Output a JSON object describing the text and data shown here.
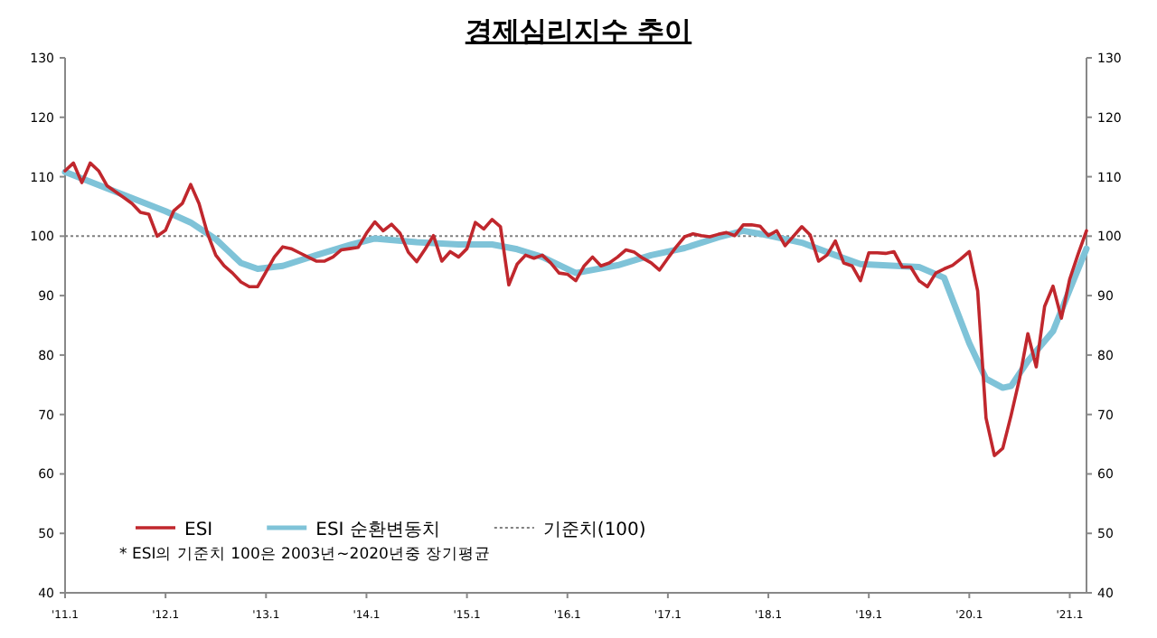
{
  "chart_data": {
    "type": "line",
    "title": "경제심리지수 추이",
    "x": [
      "2011-01",
      "2011-02",
      "2011-03",
      "2011-04",
      "2011-05",
      "2011-06",
      "2011-07",
      "2011-08",
      "2011-09",
      "2011-10",
      "2011-11",
      "2011-12",
      "2012-01",
      "2012-02",
      "2012-03",
      "2012-04",
      "2012-05",
      "2012-06",
      "2012-07",
      "2012-08",
      "2012-09",
      "2012-10",
      "2012-11",
      "2012-12",
      "2013-01",
      "2013-02",
      "2013-03",
      "2013-04",
      "2013-05",
      "2013-06",
      "2013-07",
      "2013-08",
      "2013-09",
      "2013-10",
      "2013-11",
      "2013-12",
      "2014-01",
      "2014-02",
      "2014-03",
      "2014-04",
      "2014-05",
      "2014-06",
      "2014-07",
      "2014-08",
      "2014-09",
      "2014-10",
      "2014-11",
      "2014-12",
      "2015-01",
      "2015-02",
      "2015-03",
      "2015-04",
      "2015-05",
      "2015-06",
      "2015-07",
      "2015-08",
      "2015-09",
      "2015-10",
      "2015-11",
      "2015-12",
      "2016-01",
      "2016-02",
      "2016-03",
      "2016-04",
      "2016-05",
      "2016-06",
      "2016-07",
      "2016-08",
      "2016-09",
      "2016-10",
      "2016-11",
      "2016-12",
      "2017-01",
      "2017-02",
      "2017-03",
      "2017-04",
      "2017-05",
      "2017-06",
      "2017-07",
      "2017-08",
      "2017-09",
      "2017-10",
      "2017-11",
      "2017-12",
      "2018-01",
      "2018-02",
      "2018-03",
      "2018-04",
      "2018-05",
      "2018-06",
      "2018-07",
      "2018-08",
      "2018-09",
      "2018-10",
      "2018-11",
      "2018-12",
      "2019-01",
      "2019-02",
      "2019-03",
      "2019-04",
      "2019-05",
      "2019-06",
      "2019-07",
      "2019-08",
      "2019-09",
      "2019-10",
      "2019-11",
      "2019-12",
      "2020-01",
      "2020-02",
      "2020-03",
      "2020-04",
      "2020-05",
      "2020-06",
      "2020-07",
      "2020-08",
      "2020-09",
      "2020-10",
      "2020-11",
      "2020-12",
      "2021-01",
      "2021-02",
      "2021-03"
    ],
    "series": [
      {
        "name": "ESI",
        "color": "#c0272d",
        "values": [
          111,
          112.3,
          109,
          112.3,
          111,
          108.5,
          107.5,
          106.5,
          105.5,
          104,
          103.7,
          100,
          101,
          104.3,
          105.5,
          108.7,
          105.5,
          100.5,
          96.8,
          95,
          93.8,
          92.3,
          91.5,
          91.5,
          94,
          96.5,
          98.2,
          97.9,
          97.2,
          96.5,
          95.8,
          95.8,
          96.5,
          97.7,
          97.9,
          98.1,
          100.5,
          102.4,
          100.9,
          102,
          100.5,
          97.3,
          95.7,
          97.8,
          100.1,
          95.8,
          97.4,
          96.5,
          97.9,
          102.3,
          101.2,
          102.8,
          101.6,
          91.8,
          95.3,
          96.8,
          96.3,
          96.8,
          95.5,
          93.8,
          93.6,
          92.5,
          95,
          96.5,
          95,
          95.5,
          96.5,
          97.7,
          97.3,
          96.3,
          95.5,
          94.3,
          96.3,
          98.2,
          99.9,
          100.4,
          100.1,
          99.9,
          100.3,
          100.6,
          100.1,
          101.9,
          101.9,
          101.7,
          100.1,
          100.9,
          98.4,
          100,
          101.6,
          100.2,
          95.8,
          96.8,
          99.2,
          95.5,
          95,
          92.5,
          97.2,
          97.2,
          97.1,
          97.4,
          94.8,
          94.8,
          92.5,
          91.5,
          93.8,
          94.5,
          95.1,
          96.2,
          97.4,
          90.8,
          69.4,
          63.1,
          64.3,
          69.9,
          76,
          83.6,
          78,
          88.2,
          91.6,
          86.2,
          92.8,
          97,
          100.9
        ]
      },
      {
        "name": "ESI 순환변동치",
        "color": "#7fc3d8",
        "x": [
          "2011-01",
          "2011-07",
          "2012-01",
          "2012-04",
          "2012-07",
          "2012-10",
          "2012-12",
          "2013-03",
          "2013-07",
          "2013-11",
          "2014-02",
          "2014-07",
          "2014-12",
          "2015-04",
          "2015-07",
          "2015-10",
          "2016-02",
          "2016-07",
          "2016-11",
          "2017-03",
          "2017-07",
          "2017-10",
          "2017-12",
          "2018-05",
          "2018-09",
          "2018-12",
          "2019-07",
          "2019-10",
          "2020-01",
          "2020-03",
          "2020-05",
          "2020-06",
          "2020-08",
          "2020-11",
          "2021-01",
          "2021-03"
        ],
        "values": [
          110.8,
          107.5,
          104.2,
          102.3,
          99.5,
          95.5,
          94.5,
          95,
          96.8,
          98.5,
          99.6,
          99,
          98.6,
          98.6,
          97.8,
          96.5,
          93.8,
          95.1,
          96.8,
          98,
          99.8,
          100.9,
          100.4,
          98.9,
          96.8,
          95.3,
          94.8,
          93,
          82,
          76,
          74.5,
          74.8,
          79,
          84,
          91,
          97.9
        ]
      }
    ],
    "xlim": [
      "2011-01",
      "2021-03"
    ],
    "xticks": [
      {
        "value": "2011-01",
        "label": "'11.1"
      },
      {
        "value": "2012-01",
        "label": "'12.1"
      },
      {
        "value": "2013-01",
        "label": "'13.1"
      },
      {
        "value": "2014-01",
        "label": "'14.1"
      },
      {
        "value": "2015-01",
        "label": "'15.1"
      },
      {
        "value": "2016-01",
        "label": "'16.1"
      },
      {
        "value": "2017-01",
        "label": "'17.1"
      },
      {
        "value": "2018-01",
        "label": "'18.1"
      },
      {
        "value": "2019-01",
        "label": "'19.1"
      },
      {
        "value": "2020-01",
        "label": "'20.1"
      },
      {
        "value": "2021-01",
        "label": "'21.1"
      }
    ],
    "ylim": [
      40,
      130
    ],
    "yticks": [
      40,
      50,
      60,
      70,
      80,
      90,
      100,
      110,
      120,
      130
    ],
    "y2lim": [
      40,
      130
    ],
    "y2ticks": [
      40,
      50,
      60,
      70,
      80,
      90,
      100,
      110,
      120,
      130
    ],
    "ref_lines": [
      {
        "axis": "y",
        "value": 100,
        "label": "기준치(100)",
        "color": "#808080",
        "line_style": "dotted"
      }
    ],
    "legend": "bottom left",
    "annotations": [
      "* ESI의 기준치 100은 2003년~2020년중 장기평균"
    ]
  }
}
